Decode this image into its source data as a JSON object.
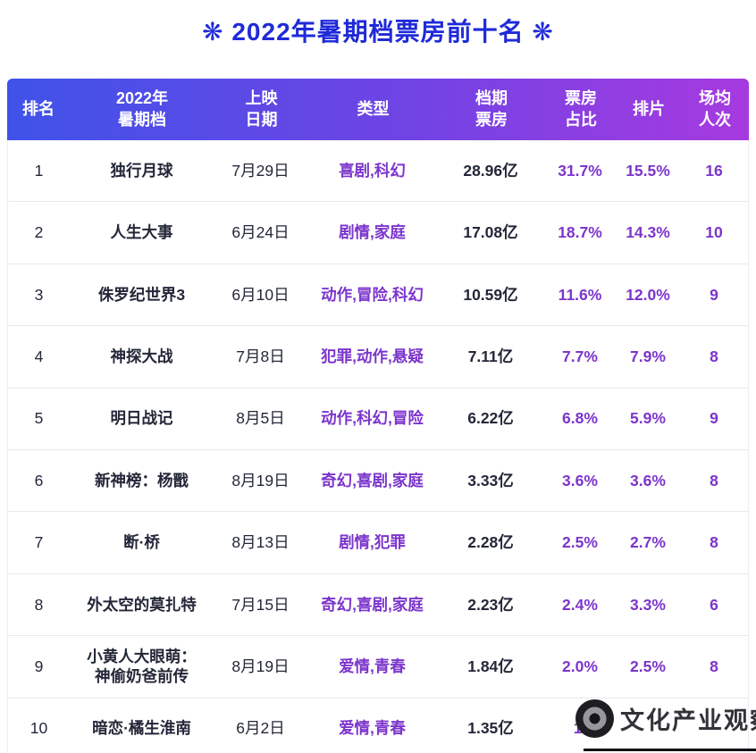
{
  "title": "❋ 2022年暑期档票房前十名 ❋",
  "table": {
    "columns": [
      {
        "key": "rank",
        "label": "排名",
        "purple": false
      },
      {
        "key": "movie",
        "label": "2022年\n暑期档",
        "purple": false
      },
      {
        "key": "date",
        "label": "上映\n日期",
        "purple": false
      },
      {
        "key": "genre",
        "label": "类型",
        "purple": true
      },
      {
        "key": "box_office",
        "label": "档期\n票房",
        "purple": false
      },
      {
        "key": "share",
        "label": "票房\n占比",
        "purple": true
      },
      {
        "key": "screening",
        "label": "排片",
        "purple": true
      },
      {
        "key": "attendance",
        "label": "场均\n人次",
        "purple": true
      }
    ]
  },
  "chart_data": {
    "type": "table",
    "title": "2022年暑期档票房前十名",
    "columns": [
      "排名",
      "2022年暑期档",
      "上映日期",
      "类型",
      "档期票房",
      "票房占比",
      "排片",
      "场均人次"
    ],
    "rows": [
      [
        "1",
        "独行月球",
        "7月29日",
        "喜剧,科幻",
        "28.96亿",
        "31.7%",
        "15.5%",
        "16"
      ],
      [
        "2",
        "人生大事",
        "6月24日",
        "剧情,家庭",
        "17.08亿",
        "18.7%",
        "14.3%",
        "10"
      ],
      [
        "3",
        "侏罗纪世界3",
        "6月10日",
        "动作,冒险,科幻",
        "10.59亿",
        "11.6%",
        "12.0%",
        "9"
      ],
      [
        "4",
        "神探大战",
        "7月8日",
        "犯罪,动作,悬疑",
        "7.11亿",
        "7.7%",
        "7.9%",
        "8"
      ],
      [
        "5",
        "明日战记",
        "8月5日",
        "动作,科幻,冒险",
        "6.22亿",
        "6.8%",
        "5.9%",
        "9"
      ],
      [
        "6",
        "新神榜：杨戬",
        "8月19日",
        "奇幻,喜剧,家庭",
        "3.33亿",
        "3.6%",
        "3.6%",
        "8"
      ],
      [
        "7",
        "断·桥",
        "8月13日",
        "剧情,犯罪",
        "2.28亿",
        "2.5%",
        "2.7%",
        "8"
      ],
      [
        "8",
        "外太空的莫扎特",
        "7月15日",
        "奇幻,喜剧,家庭",
        "2.23亿",
        "2.4%",
        "3.3%",
        "6"
      ],
      [
        "9",
        "小黄人大眼萌：\n神偷奶爸前传",
        "8月19日",
        "爱情,青春",
        "1.84亿",
        "2.0%",
        "2.5%",
        "8"
      ],
      [
        "10",
        "暗恋·橘生淮南",
        "6月2日",
        "爱情,青春",
        "1.35亿",
        "1.",
        "",
        ""
      ]
    ]
  },
  "watermark": {
    "text": "文化产业观察"
  },
  "colors": {
    "title_blue": "#1f2ad8",
    "header_gradient_start": "#3f53e9",
    "header_gradient_mid": "#6e44e4",
    "header_gradient_end": "#a63ae0",
    "purple_text": "#7c35cc",
    "dark_text": "#232738"
  }
}
